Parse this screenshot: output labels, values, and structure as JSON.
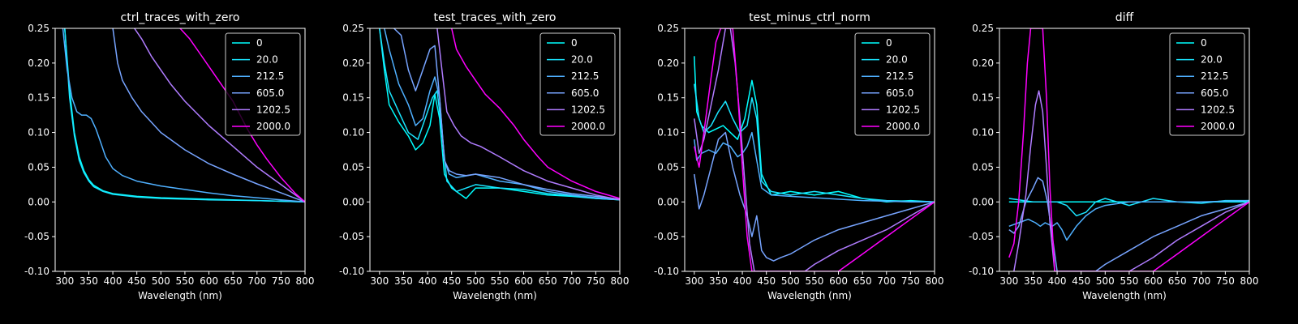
{
  "figure": {
    "background": "#000000",
    "foreground": "#ffffff"
  },
  "series_names": [
    "0",
    "20.0",
    "212.5",
    "605.0",
    "1202.5",
    "2000.0"
  ],
  "series_colors": [
    "#00ffff",
    "#1ae5ff",
    "#4fb0ff",
    "#77a4ff",
    "#b07cff",
    "#ff00ff"
  ],
  "chart_data": [
    {
      "type": "line",
      "title": "ctrl_traces_with_zero",
      "xlabel": "Wavelength (nm)",
      "ylabel": "",
      "xlim": [
        280,
        800
      ],
      "ylim": [
        -0.1,
        0.25
      ],
      "xticks": [
        300,
        350,
        400,
        450,
        500,
        550,
        600,
        650,
        700,
        750,
        800
      ],
      "yticks": [
        "-0.10",
        "-0.05",
        "0.00",
        "0.05",
        "0.10",
        "0.15",
        "0.20",
        "0.25"
      ],
      "yticks_num": [
        -0.1,
        -0.05,
        0.0,
        0.05,
        0.1,
        0.15,
        0.2,
        0.25
      ],
      "legend": "top-right",
      "grid": false,
      "series": [
        {
          "name": "0",
          "x": [
            300,
            310,
            320,
            330,
            340,
            350,
            360,
            380,
            400,
            450,
            500,
            600,
            700,
            800
          ],
          "y": [
            0.25,
            0.16,
            0.1,
            0.065,
            0.045,
            0.032,
            0.024,
            0.016,
            0.012,
            0.008,
            0.006,
            0.004,
            0.002,
            0.0
          ]
        },
        {
          "name": "20.0",
          "x": [
            300,
            310,
            320,
            330,
            340,
            350,
            360,
            380,
            400,
            450,
            500,
            600,
            700,
            800
          ],
          "y": [
            0.25,
            0.15,
            0.095,
            0.06,
            0.042,
            0.03,
            0.022,
            0.015,
            0.011,
            0.007,
            0.005,
            0.003,
            0.002,
            0.0
          ]
        },
        {
          "name": "212.5",
          "x": [
            296,
            305,
            315,
            325,
            335,
            345,
            355,
            365,
            375,
            385,
            400,
            420,
            450,
            500,
            550,
            600,
            650,
            700,
            750,
            800
          ],
          "y": [
            0.25,
            0.19,
            0.15,
            0.13,
            0.125,
            0.125,
            0.12,
            0.105,
            0.085,
            0.065,
            0.048,
            0.038,
            0.03,
            0.023,
            0.018,
            0.013,
            0.009,
            0.006,
            0.003,
            0.0
          ]
        },
        {
          "name": "605.0",
          "x": [
            400,
            410,
            420,
            440,
            460,
            480,
            500,
            550,
            600,
            650,
            700,
            750,
            800
          ],
          "y": [
            0.25,
            0.2,
            0.175,
            0.15,
            0.13,
            0.115,
            0.1,
            0.075,
            0.055,
            0.04,
            0.026,
            0.013,
            0.0
          ]
        },
        {
          "name": "1202.5",
          "x": [
            445,
            460,
            480,
            500,
            520,
            550,
            600,
            650,
            700,
            750,
            800
          ],
          "y": [
            0.25,
            0.235,
            0.21,
            0.19,
            0.17,
            0.145,
            0.11,
            0.08,
            0.05,
            0.025,
            0.0
          ]
        },
        {
          "name": "2000.0",
          "x": [
            540,
            560,
            580,
            600,
            620,
            650,
            680,
            700,
            720,
            750,
            780,
            800
          ],
          "y": [
            0.25,
            0.235,
            0.215,
            0.195,
            0.175,
            0.145,
            0.105,
            0.082,
            0.062,
            0.035,
            0.012,
            0.0
          ]
        }
      ]
    },
    {
      "type": "line",
      "title": "test_traces_with_zero",
      "xlabel": "Wavelength (nm)",
      "ylabel": "",
      "xlim": [
        280,
        800
      ],
      "ylim": [
        -0.1,
        0.25
      ],
      "xticks": [
        300,
        350,
        400,
        450,
        500,
        550,
        600,
        650,
        700,
        750,
        800
      ],
      "yticks": [
        "-0.10",
        "-0.05",
        "0.00",
        "0.05",
        "0.10",
        "0.15",
        "0.20",
        "0.25"
      ],
      "yticks_num": [
        -0.1,
        -0.05,
        0.0,
        0.05,
        0.1,
        0.15,
        0.2,
        0.25
      ],
      "legend": "top-right",
      "grid": false,
      "series": [
        {
          "name": "0",
          "x": [
            300,
            310,
            320,
            340,
            360,
            375,
            390,
            405,
            415,
            425,
            435,
            450,
            480,
            500,
            550,
            600,
            650,
            700,
            750,
            800
          ],
          "y": [
            0.25,
            0.19,
            0.14,
            0.115,
            0.095,
            0.075,
            0.085,
            0.11,
            0.155,
            0.12,
            0.04,
            0.02,
            0.005,
            0.02,
            0.02,
            0.015,
            0.01,
            0.008,
            0.005,
            0.003
          ]
        },
        {
          "name": "20.0",
          "x": [
            300,
            310,
            320,
            340,
            360,
            380,
            395,
            410,
            420,
            430,
            440,
            460,
            500,
            550,
            600,
            650,
            700,
            750,
            800
          ],
          "y": [
            0.25,
            0.2,
            0.16,
            0.13,
            0.1,
            0.09,
            0.12,
            0.15,
            0.16,
            0.1,
            0.03,
            0.015,
            0.025,
            0.02,
            0.018,
            0.012,
            0.009,
            0.005,
            0.003
          ]
        },
        {
          "name": "212.5",
          "x": [
            310,
            320,
            340,
            360,
            375,
            390,
            405,
            415,
            425,
            435,
            445,
            460,
            500,
            550,
            600,
            650,
            700,
            750,
            800
          ],
          "y": [
            0.25,
            0.22,
            0.17,
            0.14,
            0.11,
            0.12,
            0.16,
            0.18,
            0.15,
            0.06,
            0.04,
            0.035,
            0.04,
            0.03,
            0.025,
            0.015,
            0.01,
            0.006,
            0.003
          ]
        },
        {
          "name": "605.0",
          "x": [
            330,
            345,
            360,
            375,
            390,
            405,
            415,
            425,
            435,
            445,
            460,
            480,
            500,
            550,
            600,
            650,
            700,
            750,
            800
          ],
          "y": [
            0.25,
            0.24,
            0.19,
            0.16,
            0.19,
            0.22,
            0.225,
            0.15,
            0.06,
            0.045,
            0.04,
            0.038,
            0.04,
            0.035,
            0.025,
            0.018,
            0.012,
            0.008,
            0.004
          ]
        },
        {
          "name": "1202.5",
          "x": [
            420,
            430,
            440,
            455,
            470,
            490,
            510,
            550,
            600,
            650,
            700,
            750,
            800
          ],
          "y": [
            0.25,
            0.19,
            0.13,
            0.11,
            0.095,
            0.085,
            0.08,
            0.065,
            0.045,
            0.03,
            0.02,
            0.01,
            0.003
          ]
        },
        {
          "name": "2000.0",
          "x": [
            450,
            460,
            480,
            500,
            520,
            550,
            580,
            600,
            630,
            650,
            700,
            750,
            800
          ],
          "y": [
            0.25,
            0.22,
            0.195,
            0.175,
            0.155,
            0.135,
            0.11,
            0.09,
            0.065,
            0.05,
            0.03,
            0.015,
            0.005
          ]
        }
      ]
    },
    {
      "type": "line",
      "title": "test_minus_ctrl_norm",
      "xlabel": "Wavelength (nm)",
      "ylabel": "",
      "xlim": [
        280,
        800
      ],
      "ylim": [
        -0.1,
        0.25
      ],
      "xticks": [
        300,
        350,
        400,
        450,
        500,
        550,
        600,
        650,
        700,
        750,
        800
      ],
      "yticks": [
        "-0.10",
        "-0.05",
        "0.00",
        "0.05",
        "0.10",
        "0.15",
        "0.20",
        "0.25"
      ],
      "yticks_num": [
        -0.1,
        -0.05,
        0.0,
        0.05,
        0.1,
        0.15,
        0.2,
        0.25
      ],
      "legend": "top-right",
      "grid": false,
      "series": [
        {
          "name": "0",
          "x": [
            300,
            305,
            315,
            330,
            345,
            360,
            375,
            390,
            405,
            420,
            430,
            440,
            460,
            500,
            550,
            600,
            650,
            700,
            750,
            800
          ],
          "y": [
            0.21,
            0.13,
            0.11,
            0.1,
            0.105,
            0.11,
            0.1,
            0.09,
            0.12,
            0.175,
            0.14,
            0.04,
            0.01,
            0.015,
            0.01,
            0.015,
            0.005,
            0.0,
            0.002,
            0.0
          ]
        },
        {
          "name": "20.0",
          "x": [
            300,
            310,
            320,
            335,
            350,
            365,
            380,
            395,
            410,
            420,
            430,
            440,
            460,
            500,
            550,
            600,
            650,
            700,
            750,
            800
          ],
          "y": [
            0.17,
            0.12,
            0.1,
            0.11,
            0.13,
            0.145,
            0.12,
            0.1,
            0.11,
            0.15,
            0.12,
            0.03,
            0.015,
            0.01,
            0.015,
            0.01,
            0.005,
            0.002,
            0.001,
            0.0
          ]
        },
        {
          "name": "212.5",
          "x": [
            300,
            305,
            315,
            330,
            345,
            360,
            375,
            390,
            400,
            410,
            420,
            430,
            440,
            460,
            500,
            550,
            600,
            650,
            700,
            750,
            800
          ],
          "y": [
            0.09,
            0.06,
            0.07,
            0.075,
            0.07,
            0.085,
            0.08,
            0.065,
            0.07,
            0.08,
            0.1,
            0.06,
            0.02,
            0.01,
            0.008,
            0.006,
            0.004,
            0.002,
            0.001,
            0.0,
            0.0
          ]
        },
        {
          "name": "605.0",
          "x": [
            300,
            310,
            320,
            335,
            350,
            365,
            380,
            395,
            410,
            420,
            430,
            440,
            450,
            465,
            480,
            500,
            550,
            600,
            650,
            700,
            750,
            800
          ],
          "y": [
            0.04,
            -0.01,
            0.01,
            0.05,
            0.09,
            0.1,
            0.05,
            0.01,
            -0.02,
            -0.05,
            -0.02,
            -0.07,
            -0.08,
            -0.085,
            -0.08,
            -0.075,
            -0.055,
            -0.04,
            -0.03,
            -0.02,
            -0.01,
            0.0
          ]
        },
        {
          "name": "1202.5",
          "x": [
            300,
            310,
            320,
            335,
            350,
            365,
            375,
            385,
            395,
            405,
            415,
            425,
            530,
            550,
            600,
            650,
            700,
            750,
            800
          ],
          "y": [
            0.12,
            0.07,
            0.09,
            0.14,
            0.19,
            0.25,
            0.25,
            0.2,
            0.12,
            0.03,
            -0.06,
            -0.1,
            -0.1,
            -0.09,
            -0.07,
            -0.055,
            -0.04,
            -0.02,
            0.0
          ]
        },
        {
          "name": "2000.0",
          "x": [
            300,
            310,
            320,
            335,
            345,
            355,
            380,
            390,
            400,
            410,
            420,
            600,
            650,
            700,
            750,
            800
          ],
          "y": [
            0.08,
            0.05,
            0.1,
            0.18,
            0.23,
            0.25,
            0.25,
            0.16,
            0.05,
            -0.05,
            -0.1,
            -0.1,
            -0.075,
            -0.05,
            -0.025,
            0.0
          ]
        }
      ]
    },
    {
      "type": "line",
      "title": "diff",
      "xlabel": "Wavelength (nm)",
      "ylabel": "",
      "xlim": [
        280,
        800
      ],
      "ylim": [
        -0.1,
        0.25
      ],
      "xticks": [
        300,
        350,
        400,
        450,
        500,
        550,
        600,
        650,
        700,
        750,
        800
      ],
      "yticks": [
        "-0.10",
        "-0.05",
        "0.00",
        "0.05",
        "0.10",
        "0.15",
        "0.20",
        "0.25"
      ],
      "yticks_num": [
        -0.1,
        -0.05,
        0.0,
        0.05,
        0.1,
        0.15,
        0.2,
        0.25
      ],
      "legend": "top-right",
      "grid": false,
      "series": [
        {
          "name": "0",
          "x": [
            300,
            800
          ],
          "y": [
            0.0,
            0.0
          ]
        },
        {
          "name": "20.0",
          "x": [
            300,
            350,
            400,
            420,
            440,
            460,
            480,
            500,
            550,
            600,
            650,
            700,
            750,
            800
          ],
          "y": [
            0.005,
            0.0,
            0.0,
            -0.005,
            -0.02,
            -0.015,
            0.0,
            0.005,
            -0.005,
            0.005,
            0.0,
            -0.002,
            0.002,
            0.002
          ]
        },
        {
          "name": "212.5",
          "x": [
            300,
            320,
            340,
            355,
            365,
            375,
            390,
            400,
            410,
            420,
            440,
            460,
            480,
            500,
            550,
            600,
            650,
            700,
            750,
            800
          ],
          "y": [
            -0.035,
            -0.03,
            -0.025,
            -0.03,
            -0.035,
            -0.03,
            -0.035,
            -0.03,
            -0.04,
            -0.055,
            -0.035,
            -0.02,
            -0.01,
            -0.005,
            0.0,
            0.0,
            0.0,
            0.0,
            0.001,
            0.002
          ]
        },
        {
          "name": "605.0",
          "x": [
            300,
            310,
            320,
            335,
            350,
            360,
            370,
            380,
            390,
            400,
            480,
            500,
            550,
            600,
            650,
            700,
            750,
            800
          ],
          "y": [
            -0.04,
            -0.045,
            -0.035,
            0.0,
            0.02,
            0.035,
            0.03,
            0.0,
            -0.05,
            -0.1,
            -0.1,
            -0.09,
            -0.07,
            -0.05,
            -0.035,
            -0.02,
            -0.01,
            0.0
          ]
        },
        {
          "name": "1202.5",
          "x": [
            310,
            320,
            335,
            345,
            355,
            362,
            370,
            378,
            385,
            395,
            550,
            600,
            650,
            700,
            750,
            800
          ],
          "y": [
            -0.1,
            -0.06,
            0.01,
            0.08,
            0.14,
            0.16,
            0.13,
            0.05,
            -0.03,
            -0.1,
            -0.1,
            -0.08,
            -0.055,
            -0.035,
            -0.015,
            0.0
          ]
        },
        {
          "name": "2000.0",
          "x": [
            300,
            310,
            320,
            330,
            338,
            345,
            370,
            378,
            385,
            395,
            600,
            650,
            700,
            750,
            800
          ],
          "y": [
            -0.08,
            -0.06,
            0.0,
            0.1,
            0.2,
            0.25,
            0.25,
            0.15,
            0.02,
            -0.1,
            -0.1,
            -0.075,
            -0.05,
            -0.025,
            0.0
          ]
        }
      ]
    }
  ]
}
